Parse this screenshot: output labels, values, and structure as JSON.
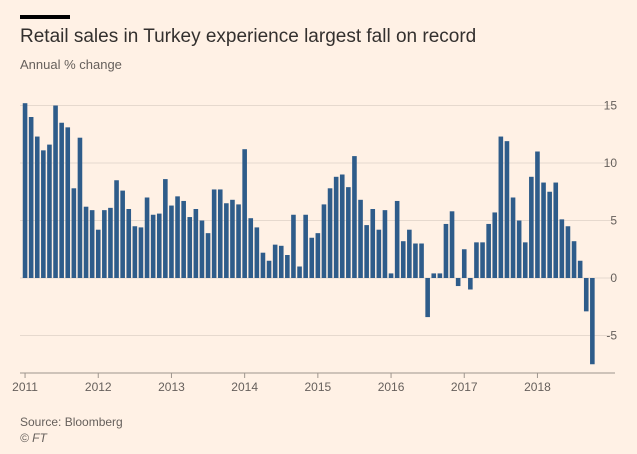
{
  "header": {
    "title": "Retail sales in Turkey experience largest fall on record",
    "subtitle": "Annual % change"
  },
  "footer": {
    "source": "Source: Bloomberg",
    "credit": "© FT"
  },
  "colors": {
    "background": "#FFF1E5",
    "bar": "#2E5C8A",
    "grid": "#E6D9CE",
    "text": "#66605C"
  },
  "chart_data": {
    "type": "bar",
    "title": "Retail sales in Turkey experience largest fall on record",
    "ylabel": "Annual % change",
    "ylim": [
      -8,
      15
    ],
    "yticks": [
      -5,
      0,
      5,
      10,
      15
    ],
    "ytick_labels": [
      "-5",
      "0",
      "5",
      "10",
      "15"
    ],
    "xtick_labels": [
      "2011",
      "2012",
      "2013",
      "2014",
      "2015",
      "2016",
      "2017",
      "2018"
    ],
    "x_start": "2011-01",
    "frequency": "monthly",
    "values": [
      15.2,
      14.0,
      12.3,
      11.1,
      11.6,
      15.0,
      13.5,
      13.1,
      7.8,
      12.2,
      6.2,
      5.9,
      4.2,
      5.9,
      6.1,
      8.5,
      7.6,
      6.0,
      4.5,
      4.4,
      7.0,
      5.5,
      5.6,
      8.6,
      6.3,
      7.1,
      6.7,
      5.3,
      6.0,
      5.0,
      3.9,
      7.7,
      7.7,
      6.5,
      6.8,
      6.4,
      11.2,
      5.2,
      4.4,
      2.2,
      1.5,
      2.9,
      2.8,
      2.0,
      5.5,
      1.0,
      5.5,
      3.5,
      3.9,
      6.4,
      7.8,
      8.8,
      9.0,
      7.9,
      10.6,
      6.8,
      4.6,
      6.0,
      4.2,
      5.9,
      0.4,
      6.7,
      3.2,
      4.2,
      3.0,
      3.0,
      -3.4,
      0.4,
      0.4,
      4.7,
      5.8,
      -0.7,
      2.5,
      -1.0,
      3.1,
      3.1,
      4.7,
      5.7,
      12.3,
      11.9,
      7.0,
      5.0,
      3.1,
      8.8,
      11.0,
      8.3,
      7.5,
      8.3,
      5.1,
      4.5,
      3.2,
      1.5,
      -2.9,
      -7.5
    ]
  }
}
